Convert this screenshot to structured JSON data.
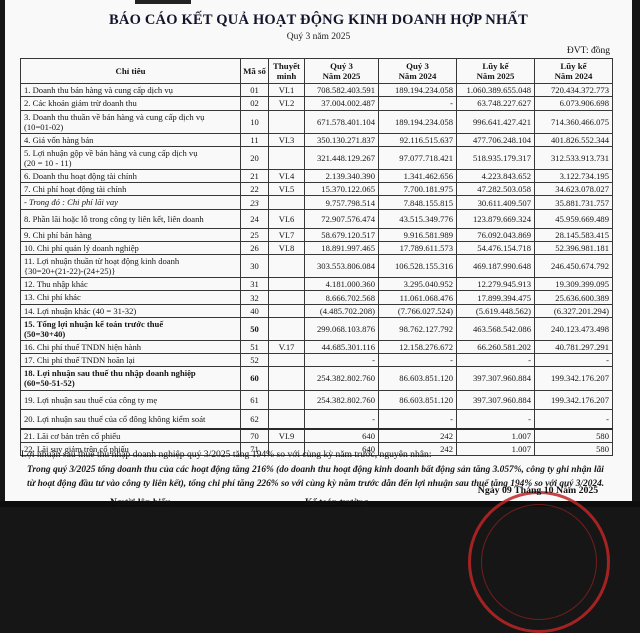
{
  "title": "BÁO CÁO KẾT QUẢ HOẠT ĐỘNG KINH DOANH HỢP NHẤT",
  "subtitle": "Quý 3 năm 2025",
  "unit_label": "ĐVT: đồng",
  "colors": {
    "stamp_red": "#bd2624",
    "text": "#1b1b1b",
    "page": "#f8f9f8"
  },
  "table": {
    "headers": [
      "Chỉ tiêu",
      "Mã số",
      "Thuyết\nminh",
      "Quý 3\nNăm 2025",
      "Quý 3\nNăm 2024",
      "Lũy kế\nNăm 2025",
      "Lũy kế\nNăm 2024"
    ],
    "rows": [
      {
        "label": "1. Doanh thu bán hàng và cung cấp dịch vụ",
        "code": "01",
        "note": "VI.1",
        "q3_2025": "708.582.403.591",
        "q3_2024": "189.194.234.058",
        "ytd_2025": "1.060.389.655.048",
        "ytd_2024": "720.434.372.773",
        "style": ""
      },
      {
        "label": "2. Các khoản giảm trừ doanh thu",
        "code": "02",
        "note": "VI.2",
        "q3_2025": "37.004.002.487",
        "q3_2024": "-",
        "ytd_2025": "63.748.227.627",
        "ytd_2024": "6.073.906.698",
        "style": ""
      },
      {
        "label": "3. Doanh thu thuần về bán hàng và cung cấp dịch vụ\n(10=01-02)",
        "code": "10",
        "note": "",
        "q3_2025": "671.578.401.104",
        "q3_2024": "189.194.234.058",
        "ytd_2025": "996.641.427.421",
        "ytd_2024": "714.360.466.075",
        "style": ""
      },
      {
        "label": "4. Giá vốn hàng bán",
        "code": "11",
        "note": "VI.3",
        "q3_2025": "350.130.271.837",
        "q3_2024": "92.116.515.637",
        "ytd_2025": "477.706.248.104",
        "ytd_2024": "401.826.552.344",
        "style": ""
      },
      {
        "label": "5. Lợi nhuận gộp về bán hàng và cung cấp dịch vụ\n(20 = 10 - 11)",
        "code": "20",
        "note": "",
        "q3_2025": "321.448.129.267",
        "q3_2024": "97.077.718.421",
        "ytd_2025": "518.935.179.317",
        "ytd_2024": "312.533.913.731",
        "style": ""
      },
      {
        "label": "6. Doanh thu hoạt động tài chính",
        "code": "21",
        "note": "VI.4",
        "q3_2025": "2.139.340.390",
        "q3_2024": "1.341.462.656",
        "ytd_2025": "4.223.843.652",
        "ytd_2024": "3.122.734.195",
        "style": ""
      },
      {
        "label": "7. Chi phí hoạt động tài chính",
        "code": "22",
        "note": "VI.5",
        "q3_2025": "15.370.122.065",
        "q3_2024": "7.700.181.975",
        "ytd_2025": "47.282.503.058",
        "ytd_2024": "34.623.078.027",
        "style": ""
      },
      {
        "label": "- Trong đó : Chi phí lãi vay",
        "code": "23",
        "note": "",
        "q3_2025": "9.757.798.514",
        "q3_2024": "7.848.155.815",
        "ytd_2025": "30.611.409.507",
        "ytd_2024": "35.881.731.757",
        "style": "italic"
      },
      {
        "label": "8. Phần lãi hoặc lỗ trong công ty liên kết, liên doanh",
        "code": "24",
        "note": "VI.6",
        "q3_2025": "72.907.576.474",
        "q3_2024": "43.515.349.776",
        "ytd_2025": "123.879.669.324",
        "ytd_2024": "45.959.669.489",
        "style": "tall"
      },
      {
        "label": "9. Chi phí bán hàng",
        "code": "25",
        "note": "VI.7",
        "q3_2025": "58.679.120.517",
        "q3_2024": "9.916.581.989",
        "ytd_2025": "76.092.043.869",
        "ytd_2024": "28.145.583.415",
        "style": ""
      },
      {
        "label": "10. Chi phí quản lý doanh nghiệp",
        "code": "26",
        "note": "VI.8",
        "q3_2025": "18.891.997.465",
        "q3_2024": "17.789.611.573",
        "ytd_2025": "54.476.154.718",
        "ytd_2024": "52.396.981.181",
        "style": ""
      },
      {
        "label": "11. Lợi nhuận thuần từ hoạt động kinh doanh\n{30=20+(21-22)-(24+25)}",
        "code": "30",
        "note": "",
        "q3_2025": "303.553.806.084",
        "q3_2024": "106.528.155.316",
        "ytd_2025": "469.187.990.648",
        "ytd_2024": "246.450.674.792",
        "style": ""
      },
      {
        "label": "12. Thu nhập khác",
        "code": "31",
        "note": "",
        "q3_2025": "4.181.000.360",
        "q3_2024": "3.295.040.952",
        "ytd_2025": "12.279.945.913",
        "ytd_2024": "19.309.399.095",
        "style": ""
      },
      {
        "label": "13. Chi phí khác",
        "code": "32",
        "note": "",
        "q3_2025": "8.666.702.568",
        "q3_2024": "11.061.068.476",
        "ytd_2025": "17.899.394.475",
        "ytd_2024": "25.636.600.389",
        "style": ""
      },
      {
        "label": "14. Lợi nhuận khác (40 = 31-32)",
        "code": "40",
        "note": "",
        "q3_2025": "(4.485.702.208)",
        "q3_2024": "(7.766.027.524)",
        "ytd_2025": "(5.619.448.562)",
        "ytd_2024": "(6.327.201.294)",
        "style": ""
      },
      {
        "label": "15. Tổng lợi nhuận kế toán trước thuế\n(50=30+40)",
        "code": "50",
        "note": "",
        "q3_2025": "299.068.103.876",
        "q3_2024": "98.762.127.792",
        "ytd_2025": "463.568.542.086",
        "ytd_2024": "240.123.473.498",
        "style": "bold"
      },
      {
        "label": "16. Chi phí thuế TNDN hiện hành",
        "code": "51",
        "note": "V.17",
        "q3_2025": "44.685.301.116",
        "q3_2024": "12.158.276.672",
        "ytd_2025": "66.260.581.202",
        "ytd_2024": "40.781.297.291",
        "style": ""
      },
      {
        "label": "17. Chi phí thuế TNDN hoãn lại",
        "code": "52",
        "note": "",
        "q3_2025": "-",
        "q3_2024": "-",
        "ytd_2025": "-",
        "ytd_2024": "-",
        "style": ""
      },
      {
        "label": "18. Lợi nhuận sau thuế thu nhập doanh nghiệp\n(60=50-51-52)",
        "code": "60",
        "note": "",
        "q3_2025": "254.382.802.760",
        "q3_2024": "86.603.851.120",
        "ytd_2025": "397.307.960.884",
        "ytd_2024": "199.342.176.207",
        "style": "bold"
      },
      {
        "label": "19. Lợi nhuận sau thuế của công ty mẹ",
        "code": "61",
        "note": "",
        "q3_2025": "254.382.802.760",
        "q3_2024": "86.603.851.120",
        "ytd_2025": "397.307.960.884",
        "ytd_2024": "199.342.176.207",
        "style": "tall"
      },
      {
        "label": "20. Lợi nhuận sau thuế của cổ đông không kiểm soát",
        "code": "62",
        "note": "",
        "q3_2025": "-",
        "q3_2024": "-",
        "ytd_2025": "-",
        "ytd_2024": "-",
        "style": "tall"
      },
      {
        "label": "21. Lãi cơ bản trên cổ phiếu",
        "code": "70",
        "note": "VI.9",
        "q3_2025": "640",
        "q3_2024": "242",
        "ytd_2025": "1.007",
        "ytd_2024": "580",
        "style": "gap-top"
      },
      {
        "label": "22. Lãi suy giảm trên cổ phiếu",
        "code": "71",
        "note": "",
        "q3_2025": "640",
        "q3_2024": "242",
        "ytd_2025": "1.007",
        "ytd_2024": "580",
        "style": ""
      }
    ]
  },
  "notes": {
    "reason_line": "Lợi nhuận sau thuế thu nhập doanh nghiệp quý 3/2025 tăng 194% so với cùng kỳ năm trước, nguyên nhân:",
    "paragraph": "Trong quý 3/2025 tổng doanh thu của các hoạt động tăng 216% (do doanh thu hoạt động kinh doanh bất động sản tăng 3.057%, công ty ghi nhận lãi từ hoạt động đầu tư vào công ty liên kết), tổng chi phí tăng 226% so với cùng kỳ năm trước dẫn đến lợi nhuận sau thuế tăng 194% so với quý 3/2024."
  },
  "footer": {
    "date": "Ngày 09 Tháng 10 Năm 2025",
    "sign_left": "Người lập biểu",
    "sign_mid": "Kế toán trưởng"
  }
}
